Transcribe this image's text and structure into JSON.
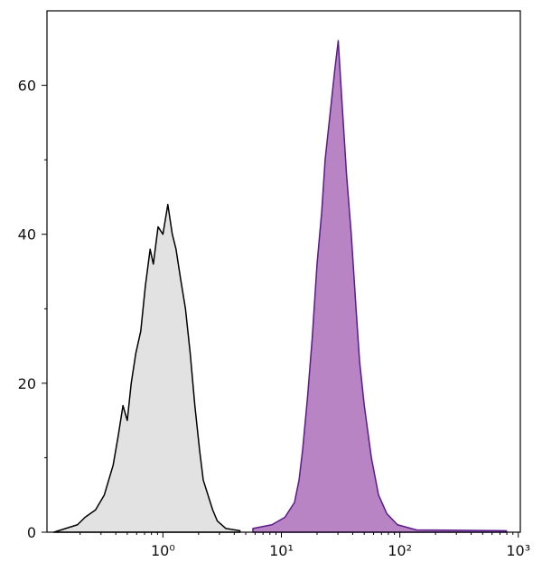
{
  "chart_data": {
    "type": "histogram",
    "xscale": "log",
    "xlim": [
      0.105,
      1040
    ],
    "ylim": [
      0,
      70
    ],
    "xticks": [
      {
        "value": 1,
        "label": "10⁰"
      },
      {
        "value": 10,
        "label": "10¹"
      },
      {
        "value": 100,
        "label": "10²"
      },
      {
        "value": 1000,
        "label": "10³"
      }
    ],
    "xticks_minor": [
      0.2,
      0.3,
      0.4,
      0.5,
      0.6,
      0.7,
      0.8,
      0.9,
      2,
      3,
      4,
      5,
      6,
      7,
      8,
      9,
      20,
      30,
      40,
      50,
      60,
      70,
      80,
      90,
      200,
      300,
      400,
      500,
      600,
      700,
      800,
      900
    ],
    "yticks": [
      0,
      20,
      40,
      60
    ],
    "yticks_minor": [
      10,
      30,
      50
    ],
    "series": [
      {
        "fill": "#e2e2e2",
        "color": "#000000",
        "x": [
          0.12,
          0.19,
          0.22,
          0.27,
          0.32,
          0.38,
          0.42,
          0.46,
          0.5,
          0.54,
          0.59,
          0.65,
          0.71,
          0.78,
          0.83,
          0.91,
          1,
          1.1,
          1.2,
          1.29,
          1.41,
          1.55,
          1.7,
          1.86,
          2.04,
          2.19,
          2.4,
          2.63,
          2.88,
          3.39,
          4.47
        ],
        "values": [
          0,
          1,
          2,
          3,
          5,
          9,
          13,
          17,
          15,
          20,
          24,
          27,
          33,
          38,
          36,
          41,
          40,
          44,
          40,
          38,
          34,
          30,
          24,
          17,
          11,
          7,
          5,
          3,
          1.5,
          0.5,
          0.2
        ]
      },
      {
        "fill": "#b884c4",
        "color": "#5b1a8c",
        "x": [
          5.75,
          8.32,
          10.7,
          12.9,
          14.1,
          15.1,
          16.6,
          18.2,
          20,
          21.9,
          23.4,
          25.7,
          28.2,
          30.2,
          32.4,
          35.5,
          38.9,
          42.7,
          45.7,
          50.1,
          57.5,
          66.1,
          77.6,
          95.5,
          138,
          794
        ],
        "values": [
          0.5,
          1,
          2,
          4,
          7,
          11,
          18,
          26,
          36,
          43,
          50,
          56,
          62,
          66,
          58,
          48,
          40,
          30,
          23,
          17,
          10,
          5,
          2.5,
          1,
          0.3,
          0.2
        ]
      }
    ]
  }
}
